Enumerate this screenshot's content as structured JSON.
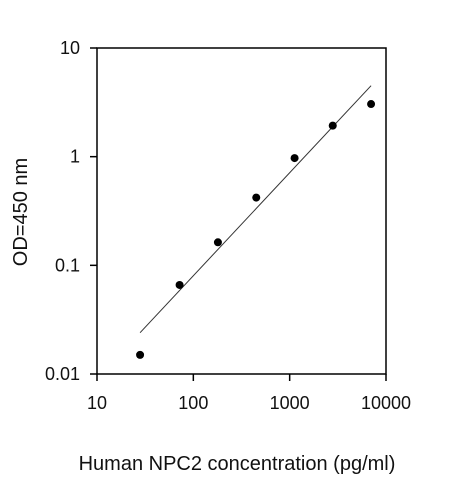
{
  "chart_data": {
    "type": "scatter",
    "title": "",
    "xlabel": "Human NPC2 concentration (pg/ml)",
    "ylabel": "OD=450 nm",
    "xscale": "log",
    "yscale": "log",
    "xlim": [
      10,
      10000
    ],
    "ylim": [
      0.01,
      10
    ],
    "grid": false,
    "legend": "none",
    "x_ticks": [
      10,
      100,
      1000,
      10000
    ],
    "x_tick_labels": [
      "10",
      "100",
      "1000",
      "10000"
    ],
    "y_ticks": [
      0.01,
      0.1,
      1,
      10
    ],
    "y_tick_labels": [
      "0.01",
      "0.1",
      "1",
      "10"
    ],
    "series": [
      {
        "x": [
          28,
          72,
          180,
          450,
          1125,
          2800,
          7000
        ],
        "y": [
          0.015,
          0.066,
          0.163,
          0.42,
          0.97,
          1.93,
          3.05
        ]
      }
    ],
    "fit_line": {
      "x": [
        28,
        7000
      ],
      "y": [
        0.024,
        4.5
      ]
    },
    "colors": {
      "points": "#000000",
      "fit_line": "#333333",
      "axes": "#000000"
    }
  }
}
